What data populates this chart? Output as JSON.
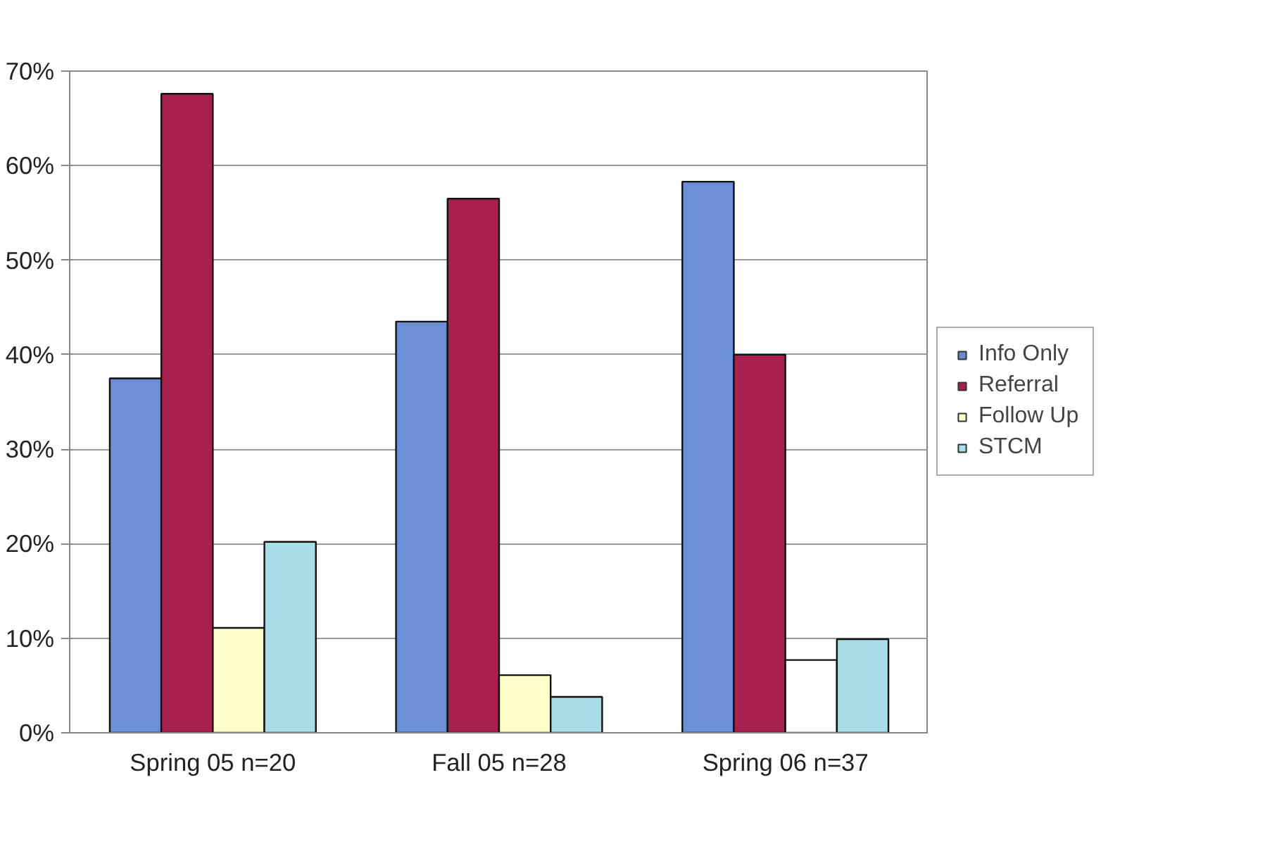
{
  "chart_data": {
    "type": "bar",
    "categories": [
      "Spring 05 n=20",
      "Fall 05 n=28",
      "Spring 06 n=37"
    ],
    "series": [
      {
        "name": "Info Only",
        "color": "#6a8fd6",
        "values": [
          37.5,
          43.5,
          58.3
        ]
      },
      {
        "name": "Referral",
        "color": "#a8204e",
        "values": [
          67.6,
          56.5,
          40
        ]
      },
      {
        "name": "Follow Up",
        "color": "#ffffcc",
        "colors": [
          "#ffffcc",
          "#ffffcc",
          "#ffffff"
        ],
        "values": [
          11.1,
          6.1,
          7.7
        ]
      },
      {
        "name": "STCM",
        "color": "#a8dde8",
        "values": [
          20.2,
          3.8,
          9.9
        ]
      }
    ],
    "ylim": [
      0,
      70
    ],
    "yticks": [
      {
        "value": 0,
        "label": "0%"
      },
      {
        "value": 10,
        "label": "10%"
      },
      {
        "value": 20,
        "label": "20%"
      },
      {
        "value": 30,
        "label": "30%"
      },
      {
        "value": 40,
        "label": "40%"
      },
      {
        "value": 50,
        "label": "50%"
      },
      {
        "value": 60,
        "label": "60%"
      },
      {
        "value": 70,
        "label": "70%"
      }
    ],
    "grid": "y",
    "legend": "right"
  }
}
